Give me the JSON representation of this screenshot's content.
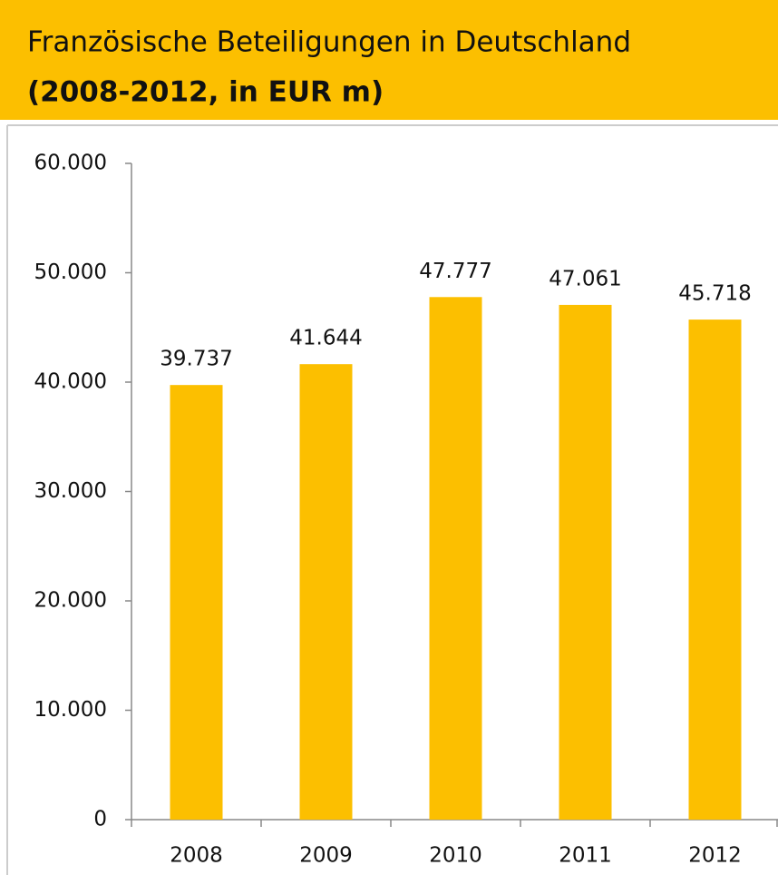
{
  "chart_data": {
    "type": "bar",
    "title": "Französische Beteiligungen in Deutschland",
    "subtitle": "(2008-2012, in EUR m)",
    "categories": [
      "2008",
      "2009",
      "2010",
      "2011",
      "2012"
    ],
    "values": [
      39737,
      41644,
      47777,
      47061,
      45718
    ],
    "value_labels": [
      "39.737",
      "41.644",
      "47.777",
      "47.061",
      "45.718"
    ],
    "color": "#fcbf00",
    "ylim": [
      0,
      60000
    ],
    "yticks": [
      0,
      {
        "value": 10000,
        "label": "10.000"
      },
      {
        "value": 20000,
        "label": "20.000"
      },
      {
        "value": 30000,
        "label": "30.000"
      },
      {
        "value": 40000,
        "label": "40.000"
      },
      {
        "value": 50000,
        "label": "50.000"
      },
      {
        "value": 60000,
        "label": "60.000"
      }
    ],
    "grid": false
  }
}
